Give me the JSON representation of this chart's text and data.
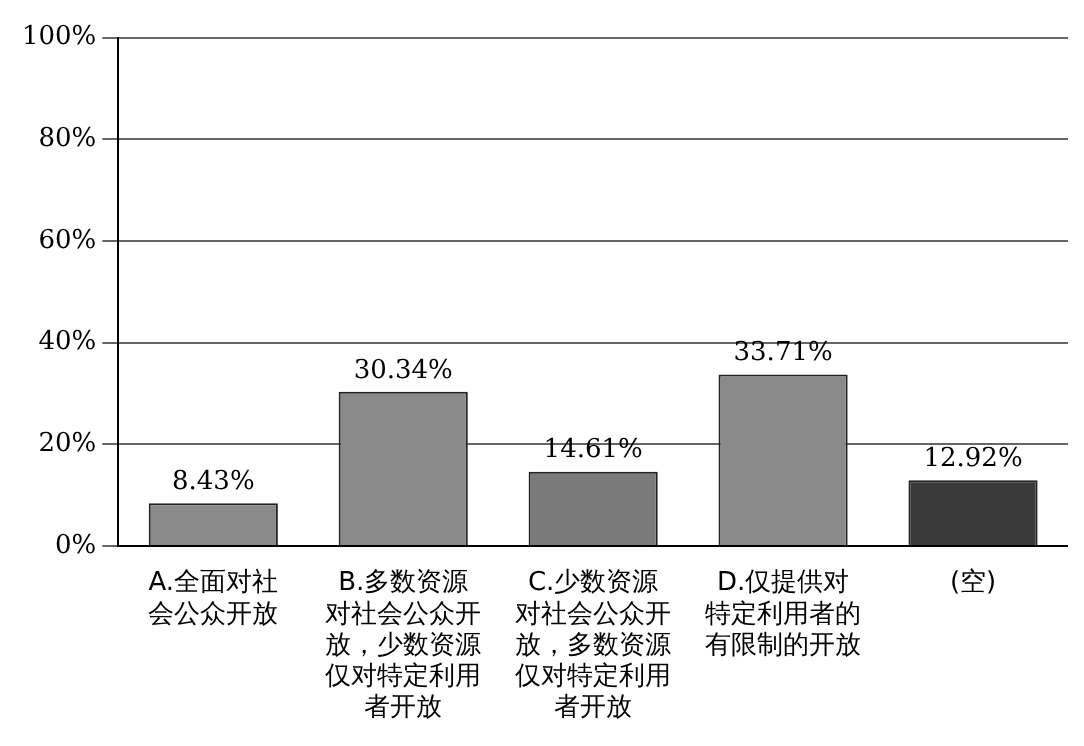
{
  "chart_data": {
    "type": "bar",
    "categories": [
      "A.全面对社会公众开放",
      "B.多数资源对社会公众开放，少数资源仅对特定利用者开放",
      "C.少数资源对社会公众开放，多数资源仅对特定利用者开放",
      "D.仅提供对特定利用者的有限制的开放",
      "(空)"
    ],
    "values": [
      8.43,
      30.34,
      14.61,
      33.71,
      12.92
    ],
    "value_labels": [
      "8.43%",
      "30.34%",
      "14.61%",
      "33.71%",
      "12.92%"
    ],
    "colors": [
      "#8a8a8a",
      "#8a8a8a",
      "#7a7a7a",
      "#8a8a8a",
      "#3a3a3a"
    ],
    "ylim": [
      0,
      100
    ],
    "yticks": [
      {
        "value": 0,
        "label": "0%"
      },
      {
        "value": 20,
        "label": "20%"
      },
      {
        "value": 40,
        "label": "40%"
      },
      {
        "value": 60,
        "label": "60%"
      },
      {
        "value": 80,
        "label": "80%"
      },
      {
        "value": 100,
        "label": "100%"
      }
    ],
    "grid": "y",
    "legend": false
  }
}
